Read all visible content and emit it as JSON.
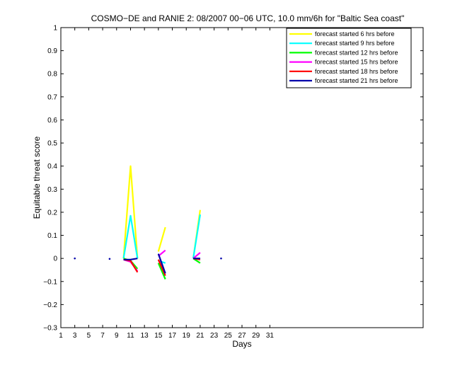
{
  "chart_data": {
    "type": "line",
    "title": "COSMO−DE and RANIE 2: 08/2007 00−06 UTC, 10.0 mm/6h for \"Baltic Sea coast\"",
    "xlabel": "Days",
    "ylabel": "Equitable threat score",
    "xlim": [
      1,
      53
    ],
    "ylim": [
      -0.3,
      1
    ],
    "xticks": [
      1,
      3,
      5,
      7,
      9,
      11,
      13,
      15,
      17,
      19,
      21,
      23,
      25,
      27,
      29,
      31
    ],
    "yticks": [
      -0.3,
      -0.2,
      -0.1,
      0,
      0.1,
      0.2,
      0.3,
      0.4,
      0.5,
      0.6,
      0.7,
      0.8,
      0.9,
      1
    ],
    "ytick_labels": [
      "−0.3",
      "−0.2",
      "−0.1",
      "0",
      "0.1",
      "0.2",
      "0.3",
      "0.4",
      "0.5",
      "0.6",
      "0.7",
      "0.8",
      "0.9",
      "1"
    ],
    "grid": false,
    "legend_position": "top-right",
    "series": [
      {
        "name": "forecast started 6 hrs before",
        "color": "#ffff00",
        "segments": [
          [
            [
              10,
              0
            ],
            [
              11,
              0.4
            ],
            [
              12,
              0
            ]
          ],
          [
            [
              15,
              0.03
            ],
            [
              16,
              0.135
            ]
          ],
          [
            [
              20,
              0
            ],
            [
              21,
              0.21
            ]
          ]
        ]
      },
      {
        "name": "forecast started 9 hrs before",
        "color": "#00ffff",
        "segments": [
          [
            [
              10,
              0
            ],
            [
              11,
              0.185
            ],
            [
              12,
              0
            ]
          ],
          [
            [
              15,
              -0.01
            ],
            [
              16,
              -0.02
            ]
          ],
          [
            [
              20,
              0
            ],
            [
              21,
              0.19
            ]
          ]
        ]
      },
      {
        "name": "forecast started 12 hrs before",
        "color": "#00ff00",
        "segments": [
          [
            [
              10,
              0
            ],
            [
              11,
              -0.01
            ],
            [
              12,
              -0.045
            ]
          ],
          [
            [
              15,
              -0.02
            ],
            [
              16,
              -0.09
            ]
          ],
          [
            [
              20,
              0
            ],
            [
              21,
              -0.02
            ]
          ]
        ]
      },
      {
        "name": "forecast started 15 hrs before",
        "color": "#ff00ff",
        "segments": [
          [
            [
              10,
              -0.005
            ],
            [
              11,
              -0.015
            ],
            [
              12,
              -0.055
            ]
          ],
          [
            [
              15,
              0.01
            ],
            [
              16,
              0.035
            ]
          ],
          [
            [
              20,
              0
            ],
            [
              21,
              0.025
            ]
          ]
        ]
      },
      {
        "name": "forecast started 18 hrs before",
        "color": "#ff0000",
        "segments": [
          [
            [
              10,
              -0.005
            ],
            [
              11,
              -0.01
            ],
            [
              12,
              -0.06
            ]
          ],
          [
            [
              15,
              -0.005
            ],
            [
              16,
              -0.075
            ]
          ],
          [
            [
              20,
              0
            ],
            [
              21,
              -0.005
            ]
          ]
        ]
      },
      {
        "name": "forecast started 21 hrs before",
        "color": "#0000aa",
        "segments": [
          [
            [
              10,
              -0.005
            ],
            [
              11,
              -0.005
            ],
            [
              12,
              0
            ]
          ],
          [
            [
              15,
              0.02
            ],
            [
              16,
              -0.065
            ]
          ],
          [
            [
              20,
              0
            ],
            [
              21,
              0
            ]
          ]
        ],
        "points": [
          [
            3,
            0
          ],
          [
            8,
            -0.002
          ],
          [
            24,
            0
          ]
        ]
      }
    ]
  }
}
